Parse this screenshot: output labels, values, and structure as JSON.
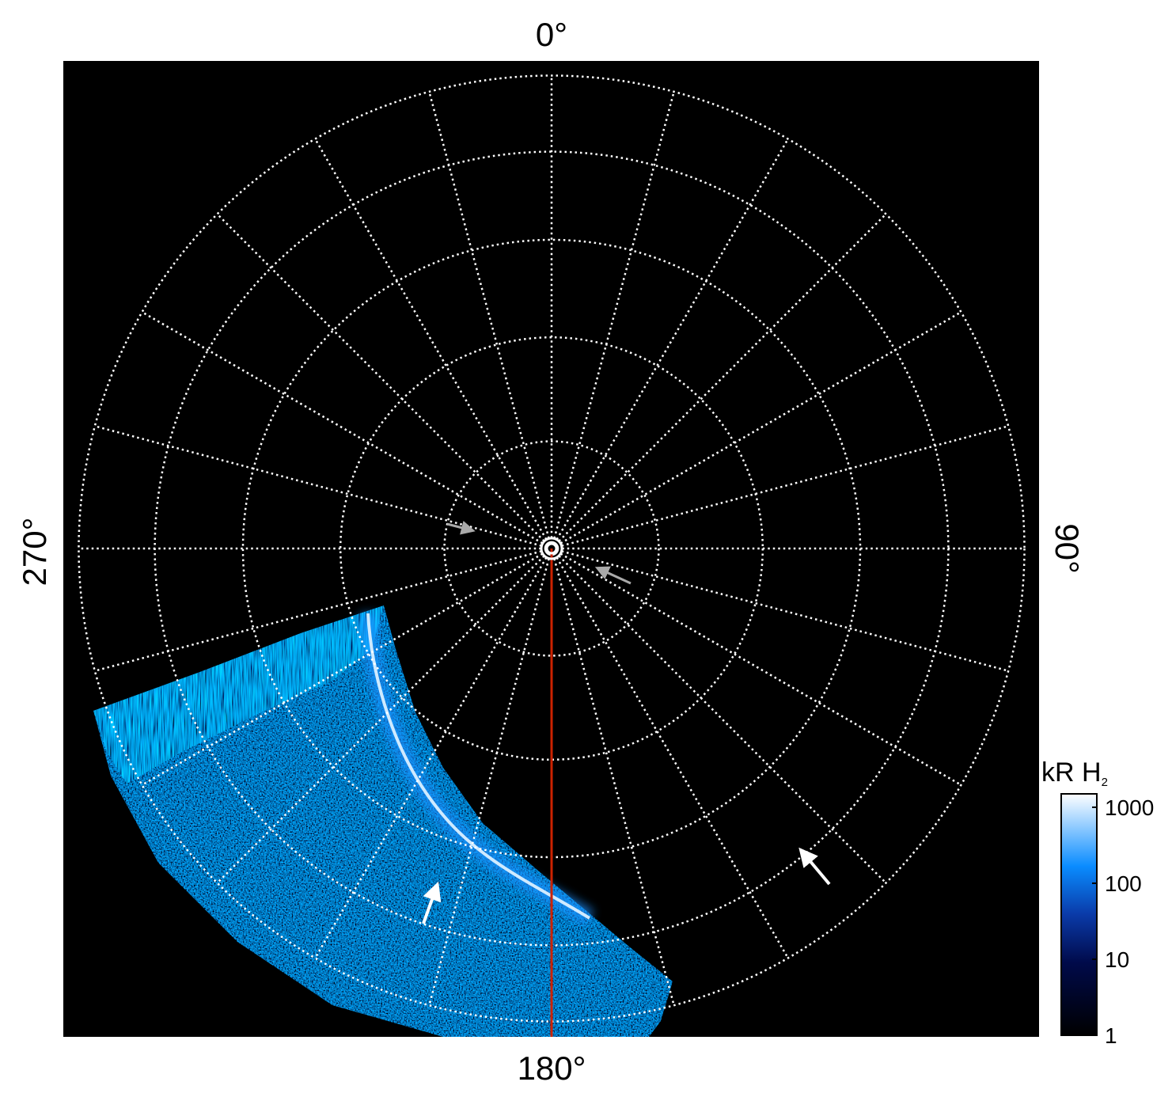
{
  "chart_data": {
    "type": "heatmap",
    "projection": "polar",
    "title": "",
    "axis_labels": {
      "top": "0°",
      "right": "90°",
      "bottom": "180°",
      "left": "270°"
    },
    "longitude_gridlines_deg_step": 15,
    "colatitude_rings_deg": [
      10,
      20,
      30,
      40,
      50
    ],
    "highlight_meridian_deg": 180,
    "highlight_meridian_color": "#cc2200",
    "colorbar": {
      "label": "kR H",
      "label_subscript": "2",
      "scale": "log",
      "range": [
        1,
        1500
      ],
      "ticks": [
        "1",
        "10",
        "100",
        "1000"
      ],
      "colors": [
        "#000000",
        "#000a4a",
        "#0a3aa8",
        "#0a8cff",
        "#ffffff"
      ]
    },
    "background_color": "#000000",
    "annotations": [
      "gray-arrow",
      "gray-arrow",
      "white-arrow",
      "white-arrow"
    ]
  }
}
